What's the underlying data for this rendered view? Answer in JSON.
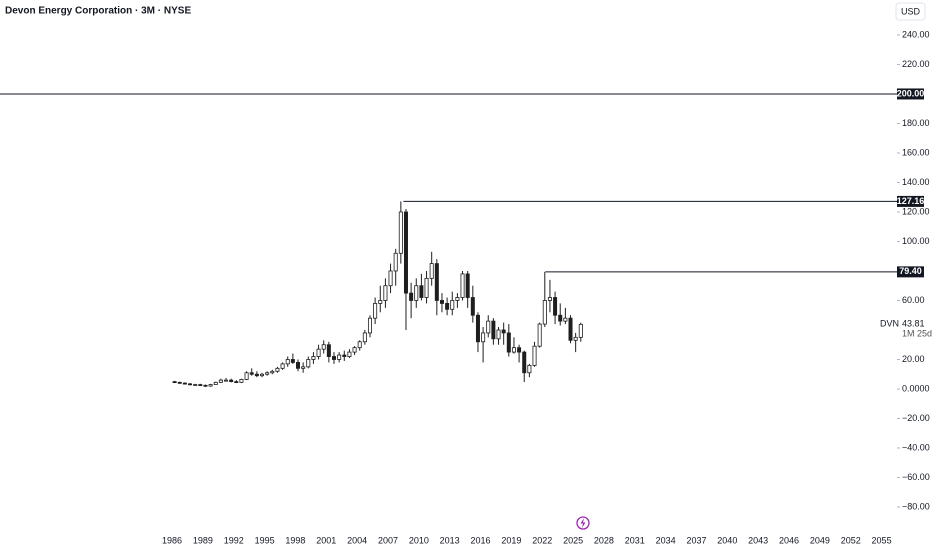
{
  "chart_data": {
    "type": "candlestick",
    "title": "Devon Energy Corporation · 3M · NYSE",
    "currency": "USD",
    "color": "#1e1e1e",
    "x": [
      1986.25,
      1986.75,
      1987.25,
      1987.75,
      1988.25,
      1988.75,
      1989.25,
      1989.75,
      1990.25,
      1990.75,
      1991.25,
      1991.75,
      1992.25,
      1992.75,
      1993.25,
      1993.75,
      1994.25,
      1994.75,
      1995.25,
      1995.75,
      1996.25,
      1996.75,
      1997.25,
      1997.75,
      1998.25,
      1998.75,
      1999.25,
      1999.75,
      2000.25,
      2000.75,
      2001.25,
      2001.75,
      2002.25,
      2002.75,
      2003.25,
      2003.75,
      2004.25,
      2004.75,
      2005.25,
      2005.75,
      2006.25,
      2006.75,
      2007.25,
      2007.75,
      2008.25,
      2008.75,
      2009.25,
      2009.75,
      2010.25,
      2010.75,
      2011.25,
      2011.75,
      2012.25,
      2012.75,
      2013.25,
      2013.75,
      2014.25,
      2014.75,
      2015.25,
      2015.75,
      2016.25,
      2016.75,
      2017.25,
      2017.75,
      2018.25,
      2018.75,
      2019.25,
      2019.75,
      2020.25,
      2020.75,
      2021.25,
      2021.75,
      2022.25,
      2022.75,
      2023.25,
      2023.75,
      2024.25,
      2024.75,
      2025.25,
      2025.75
    ],
    "open": [
      5,
      4.5,
      4,
      3.5,
      3,
      3,
      2.5,
      2,
      3,
      4.5,
      6,
      6,
      5,
      4.5,
      6.5,
      11,
      10,
      9,
      10,
      11,
      12,
      14,
      17,
      20,
      18,
      14,
      15,
      20,
      22,
      27,
      30,
      22,
      20,
      23,
      22,
      25,
      28,
      32,
      38,
      48,
      58,
      60,
      70,
      80,
      92,
      120,
      65,
      60,
      70,
      62,
      75,
      85,
      60,
      58,
      54,
      60,
      62,
      78,
      62,
      50,
      32,
      38,
      46,
      34,
      40,
      38,
      25,
      28,
      25,
      11,
      16,
      29,
      44,
      60,
      62,
      50,
      46,
      48,
      33,
      35
    ],
    "high": [
      5.5,
      5,
      4.5,
      4,
      3.5,
      3.5,
      3,
      3.5,
      5,
      7,
      7.5,
      7,
      6,
      7,
      12,
      14,
      12,
      11,
      12,
      13,
      15,
      18,
      22,
      24,
      20,
      18,
      22,
      25,
      30,
      33,
      32,
      25,
      25,
      26,
      27,
      29,
      33,
      40,
      50,
      62,
      70,
      75,
      85,
      95,
      127.16,
      122,
      72,
      75,
      78,
      80,
      93,
      88,
      65,
      62,
      66,
      65,
      80,
      80,
      70,
      52,
      42,
      50,
      48,
      42,
      45,
      44,
      35,
      30,
      26,
      17,
      32,
      45,
      79.4,
      74,
      66,
      58,
      55,
      50,
      38,
      45
    ],
    "low": [
      4,
      3.5,
      3,
      2.5,
      2.5,
      2,
      1.5,
      1.5,
      3,
      4,
      5,
      4.5,
      4,
      4,
      6,
      9,
      8,
      8,
      9,
      10,
      11,
      13,
      15,
      17,
      12,
      11,
      14,
      17,
      20,
      24,
      18,
      17,
      18,
      19,
      21,
      23,
      26,
      30,
      35,
      44,
      52,
      55,
      65,
      70,
      85,
      40,
      48,
      55,
      60,
      58,
      70,
      50,
      52,
      50,
      50,
      55,
      60,
      55,
      45,
      25,
      18,
      35,
      30,
      30,
      30,
      22,
      24,
      18,
      4.7,
      8,
      15,
      28,
      42,
      52,
      44,
      43,
      44,
      31,
      25,
      32
    ],
    "close": [
      4.5,
      4,
      3.5,
      3,
      3,
      2.5,
      2,
      3,
      4.5,
      6,
      6,
      5,
      4.5,
      6.5,
      11,
      10,
      9,
      10,
      11,
      12,
      14,
      17,
      20,
      18,
      14,
      15,
      20,
      22,
      27,
      30,
      22,
      20,
      23,
      22,
      25,
      28,
      32,
      38,
      48,
      58,
      60,
      70,
      80,
      92,
      120,
      65,
      60,
      70,
      62,
      75,
      85,
      60,
      58,
      54,
      60,
      62,
      78,
      62,
      50,
      32,
      38,
      46,
      34,
      40,
      38,
      25,
      28,
      25,
      11,
      16,
      29,
      44,
      60,
      62,
      50,
      46,
      48,
      33,
      35,
      43.81
    ],
    "xlim": [
      1969.27,
      2056.5
    ],
    "xticks": [
      1986,
      1989,
      1992,
      1995,
      1998,
      2001,
      2004,
      2007,
      2010,
      2013,
      2016,
      2019,
      2022,
      2025,
      2028,
      2031,
      2034,
      2037,
      2040,
      2043,
      2046,
      2049,
      2052,
      2055
    ],
    "ylim": [
      -95.6,
      263.7
    ],
    "yticks": [
      {
        "value": 240,
        "label": "240.00"
      },
      {
        "value": 220,
        "label": "220.00"
      },
      {
        "value": 180,
        "label": "180.00"
      },
      {
        "value": 160,
        "label": "160.00"
      },
      {
        "value": 140,
        "label": "140.00"
      },
      {
        "value": 120,
        "label": "120.00"
      },
      {
        "value": 100,
        "label": "100.00"
      },
      {
        "value": 60,
        "label": "60.00"
      },
      {
        "value": 20,
        "label": "20.00"
      },
      {
        "value": 0,
        "label": "0.0000"
      },
      {
        "value": -20,
        "label": "−20.00"
      },
      {
        "value": -40,
        "label": "−40.00"
      },
      {
        "value": -60,
        "label": "−60.00"
      },
      {
        "value": -80,
        "label": "−80.00"
      }
    ],
    "levels": [
      {
        "value": 200,
        "label": "200.00"
      },
      {
        "value": 127.16,
        "label": "127.16",
        "start": 2008.5
      },
      {
        "value": 79.4,
        "label": "79.40",
        "start": 2022.3
      }
    ],
    "last_price": {
      "symbol": "DVN",
      "value": 43.81,
      "countdown": "1M 25d"
    }
  }
}
